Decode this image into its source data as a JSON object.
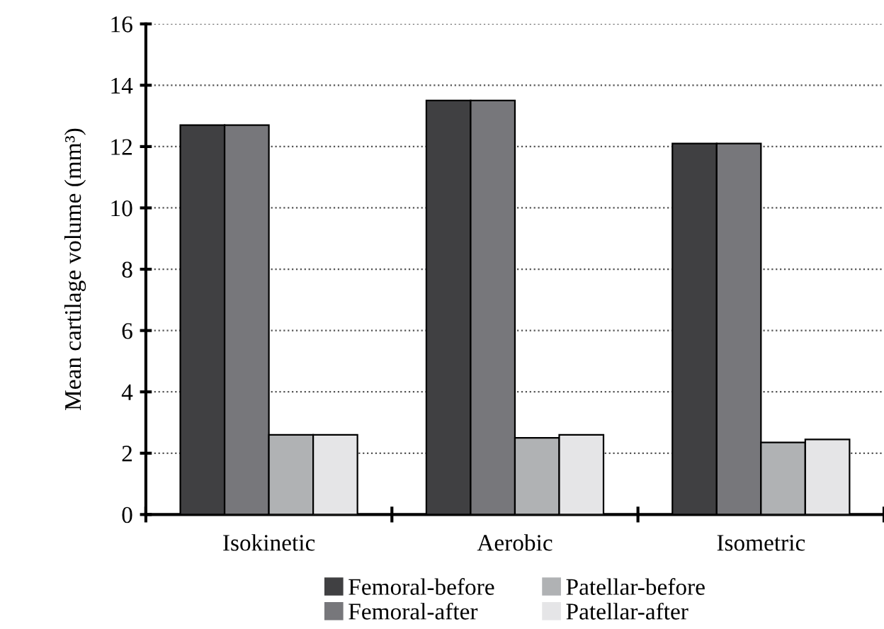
{
  "chart_data": {
    "type": "bar",
    "ylabel": "Mean cartilage volume (mm³)",
    "categories": [
      "Isokinetic",
      "Aerobic",
      "Isometric"
    ],
    "series": [
      {
        "name": "Femoral-before",
        "color": "#404042",
        "values": [
          12.7,
          13.5,
          12.1
        ]
      },
      {
        "name": "Femoral-after",
        "color": "#77777b",
        "values": [
          12.7,
          13.5,
          12.1
        ]
      },
      {
        "name": "Patellar-before",
        "color": "#b0b2b4",
        "values": [
          2.6,
          2.5,
          2.35
        ]
      },
      {
        "name": "Patellar-after",
        "color": "#e5e5e7",
        "values": [
          2.6,
          2.6,
          2.45
        ]
      }
    ],
    "ylim": [
      0,
      16
    ],
    "yticks": [
      0,
      2,
      4,
      6,
      8,
      10,
      12,
      14,
      16
    ],
    "grid": "y",
    "legend": "bottom"
  }
}
